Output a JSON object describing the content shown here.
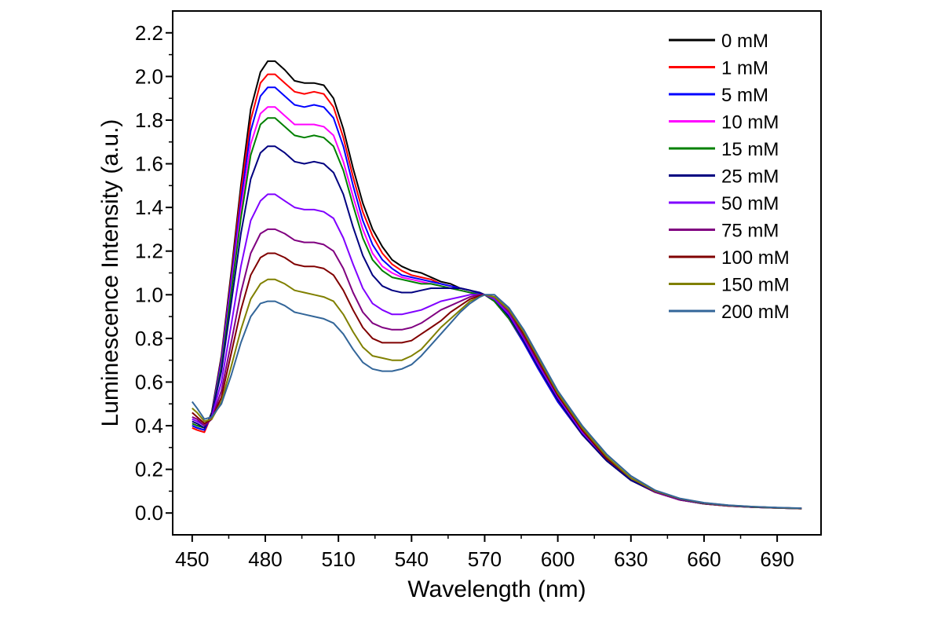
{
  "chart_data": {
    "type": "line",
    "title": "",
    "xlabel": "Wavelength (nm)",
    "ylabel": "Luminescence Intensity (a.u.)",
    "xlim": [
      442,
      708
    ],
    "ylim": [
      -0.1,
      2.3
    ],
    "xticks": [
      450,
      480,
      510,
      540,
      570,
      600,
      630,
      660,
      690
    ],
    "yticks": [
      0.0,
      0.2,
      0.4,
      0.6,
      0.8,
      1.0,
      1.2,
      1.4,
      1.6,
      1.8,
      2.0,
      2.2
    ],
    "xtick_labels": [
      "450",
      "480",
      "510",
      "540",
      "570",
      "600",
      "630",
      "660",
      "690"
    ],
    "ytick_labels": [
      "0.0",
      "0.2",
      "0.4",
      "0.6",
      "0.8",
      "1.0",
      "1.2",
      "1.4",
      "1.6",
      "1.8",
      "2.0",
      "2.2"
    ],
    "grid": false,
    "legend_position": "top-right",
    "x": [
      450,
      452,
      455,
      458,
      462,
      466,
      470,
      474,
      478,
      481,
      484,
      488,
      492,
      496,
      500,
      504,
      508,
      512,
      516,
      520,
      524,
      528,
      532,
      536,
      540,
      544,
      548,
      552,
      556,
      560,
      564,
      568,
      570,
      574,
      580,
      586,
      592,
      600,
      610,
      620,
      630,
      640,
      650,
      660,
      670,
      680,
      690,
      700
    ],
    "series": [
      {
        "name": "0 mM",
        "color": "#000000",
        "values": [
          0.4,
          0.39,
          0.38,
          0.46,
          0.72,
          1.1,
          1.5,
          1.85,
          2.02,
          2.07,
          2.07,
          2.03,
          1.98,
          1.97,
          1.97,
          1.96,
          1.9,
          1.76,
          1.58,
          1.42,
          1.3,
          1.22,
          1.16,
          1.13,
          1.11,
          1.1,
          1.08,
          1.06,
          1.05,
          1.03,
          1.02,
          1.005,
          1.0,
          0.97,
          0.89,
          0.78,
          0.66,
          0.51,
          0.36,
          0.24,
          0.15,
          0.095,
          0.06,
          0.042,
          0.032,
          0.027,
          0.023,
          0.02
        ]
      },
      {
        "name": "1 mM",
        "color": "#ff0000",
        "values": [
          0.39,
          0.38,
          0.37,
          0.45,
          0.71,
          1.08,
          1.47,
          1.8,
          1.97,
          2.01,
          2.01,
          1.97,
          1.93,
          1.92,
          1.93,
          1.92,
          1.86,
          1.72,
          1.54,
          1.38,
          1.27,
          1.19,
          1.14,
          1.11,
          1.09,
          1.08,
          1.07,
          1.05,
          1.04,
          1.03,
          1.02,
          1.005,
          1.0,
          0.97,
          0.89,
          0.78,
          0.66,
          0.51,
          0.36,
          0.24,
          0.15,
          0.095,
          0.06,
          0.042,
          0.032,
          0.027,
          0.023,
          0.02
        ]
      },
      {
        "name": "5 mM",
        "color": "#0000ff",
        "values": [
          0.4,
          0.39,
          0.38,
          0.45,
          0.7,
          1.06,
          1.43,
          1.75,
          1.91,
          1.95,
          1.95,
          1.91,
          1.87,
          1.86,
          1.87,
          1.86,
          1.81,
          1.68,
          1.5,
          1.34,
          1.23,
          1.16,
          1.12,
          1.09,
          1.08,
          1.07,
          1.06,
          1.05,
          1.04,
          1.03,
          1.02,
          1.005,
          1.0,
          0.97,
          0.89,
          0.78,
          0.66,
          0.51,
          0.36,
          0.24,
          0.15,
          0.096,
          0.061,
          0.043,
          0.033,
          0.027,
          0.023,
          0.02
        ]
      },
      {
        "name": "10 mM",
        "color": "#ff00ff",
        "values": [
          0.41,
          0.4,
          0.39,
          0.45,
          0.68,
          1.03,
          1.39,
          1.69,
          1.83,
          1.86,
          1.86,
          1.82,
          1.78,
          1.78,
          1.78,
          1.77,
          1.73,
          1.61,
          1.45,
          1.3,
          1.19,
          1.13,
          1.1,
          1.08,
          1.07,
          1.06,
          1.05,
          1.04,
          1.03,
          1.02,
          1.01,
          1.0,
          1.0,
          0.97,
          0.89,
          0.79,
          0.67,
          0.52,
          0.36,
          0.24,
          0.15,
          0.096,
          0.061,
          0.043,
          0.033,
          0.027,
          0.023,
          0.02
        ]
      },
      {
        "name": "15 mM",
        "color": "#008000",
        "values": [
          0.41,
          0.4,
          0.39,
          0.45,
          0.67,
          1.01,
          1.35,
          1.64,
          1.78,
          1.81,
          1.81,
          1.77,
          1.73,
          1.72,
          1.73,
          1.72,
          1.68,
          1.57,
          1.41,
          1.26,
          1.16,
          1.11,
          1.08,
          1.07,
          1.06,
          1.05,
          1.05,
          1.04,
          1.03,
          1.02,
          1.01,
          1.0,
          1.0,
          0.97,
          0.89,
          0.79,
          0.67,
          0.52,
          0.36,
          0.24,
          0.15,
          0.097,
          0.062,
          0.043,
          0.033,
          0.027,
          0.023,
          0.02
        ]
      },
      {
        "name": "25 mM",
        "color": "#000080",
        "values": [
          0.42,
          0.41,
          0.39,
          0.45,
          0.65,
          0.96,
          1.28,
          1.53,
          1.65,
          1.68,
          1.68,
          1.65,
          1.61,
          1.6,
          1.61,
          1.6,
          1.56,
          1.46,
          1.31,
          1.18,
          1.09,
          1.04,
          1.02,
          1.01,
          1.01,
          1.02,
          1.03,
          1.03,
          1.03,
          1.03,
          1.02,
          1.01,
          1.0,
          0.98,
          0.9,
          0.79,
          0.67,
          0.52,
          0.36,
          0.24,
          0.15,
          0.097,
          0.062,
          0.044,
          0.034,
          0.028,
          0.024,
          0.021
        ]
      },
      {
        "name": "50 mM",
        "color": "#8000ff",
        "values": [
          0.43,
          0.42,
          0.4,
          0.44,
          0.6,
          0.86,
          1.13,
          1.34,
          1.43,
          1.46,
          1.46,
          1.43,
          1.4,
          1.39,
          1.39,
          1.38,
          1.35,
          1.26,
          1.14,
          1.03,
          0.96,
          0.93,
          0.91,
          0.91,
          0.92,
          0.93,
          0.95,
          0.97,
          0.98,
          0.99,
          1.0,
          1.0,
          1.0,
          0.98,
          0.91,
          0.8,
          0.68,
          0.53,
          0.37,
          0.25,
          0.16,
          0.098,
          0.063,
          0.045,
          0.034,
          0.028,
          0.024,
          0.021
        ]
      },
      {
        "name": "75 mM",
        "color": "#800080",
        "values": [
          0.44,
          0.43,
          0.4,
          0.43,
          0.56,
          0.78,
          1.01,
          1.19,
          1.28,
          1.3,
          1.3,
          1.28,
          1.25,
          1.24,
          1.24,
          1.23,
          1.2,
          1.12,
          1.01,
          0.92,
          0.87,
          0.85,
          0.84,
          0.84,
          0.85,
          0.87,
          0.9,
          0.93,
          0.95,
          0.97,
          0.99,
          1.0,
          1.0,
          0.99,
          0.92,
          0.81,
          0.69,
          0.54,
          0.38,
          0.25,
          0.16,
          0.099,
          0.064,
          0.045,
          0.034,
          0.028,
          0.024,
          0.021
        ]
      },
      {
        "name": "100 mM",
        "color": "#800000",
        "values": [
          0.46,
          0.44,
          0.41,
          0.43,
          0.53,
          0.73,
          0.93,
          1.09,
          1.17,
          1.19,
          1.19,
          1.17,
          1.14,
          1.13,
          1.13,
          1.12,
          1.09,
          1.02,
          0.93,
          0.85,
          0.8,
          0.78,
          0.78,
          0.78,
          0.79,
          0.82,
          0.85,
          0.88,
          0.92,
          0.95,
          0.98,
          0.995,
          1.0,
          0.99,
          0.93,
          0.82,
          0.7,
          0.54,
          0.38,
          0.25,
          0.16,
          0.1,
          0.065,
          0.046,
          0.035,
          0.028,
          0.024,
          0.021
        ]
      },
      {
        "name": "150 mM",
        "color": "#808000",
        "values": [
          0.48,
          0.46,
          0.42,
          0.43,
          0.51,
          0.67,
          0.84,
          0.98,
          1.05,
          1.07,
          1.07,
          1.05,
          1.02,
          1.01,
          1.0,
          0.99,
          0.97,
          0.91,
          0.83,
          0.76,
          0.72,
          0.71,
          0.7,
          0.7,
          0.72,
          0.75,
          0.8,
          0.85,
          0.89,
          0.93,
          0.97,
          0.99,
          1.0,
          0.99,
          0.93,
          0.83,
          0.71,
          0.55,
          0.39,
          0.26,
          0.16,
          0.101,
          0.066,
          0.046,
          0.035,
          0.029,
          0.024,
          0.021
        ]
      },
      {
        "name": "200 mM",
        "color": "#336699",
        "values": [
          0.51,
          0.48,
          0.43,
          0.44,
          0.5,
          0.63,
          0.78,
          0.9,
          0.96,
          0.97,
          0.97,
          0.95,
          0.92,
          0.91,
          0.9,
          0.89,
          0.87,
          0.82,
          0.75,
          0.69,
          0.66,
          0.65,
          0.65,
          0.66,
          0.68,
          0.72,
          0.77,
          0.82,
          0.87,
          0.92,
          0.96,
          0.99,
          1.0,
          1.0,
          0.94,
          0.84,
          0.72,
          0.56,
          0.4,
          0.27,
          0.17,
          0.104,
          0.067,
          0.047,
          0.036,
          0.029,
          0.025,
          0.022
        ]
      }
    ]
  }
}
